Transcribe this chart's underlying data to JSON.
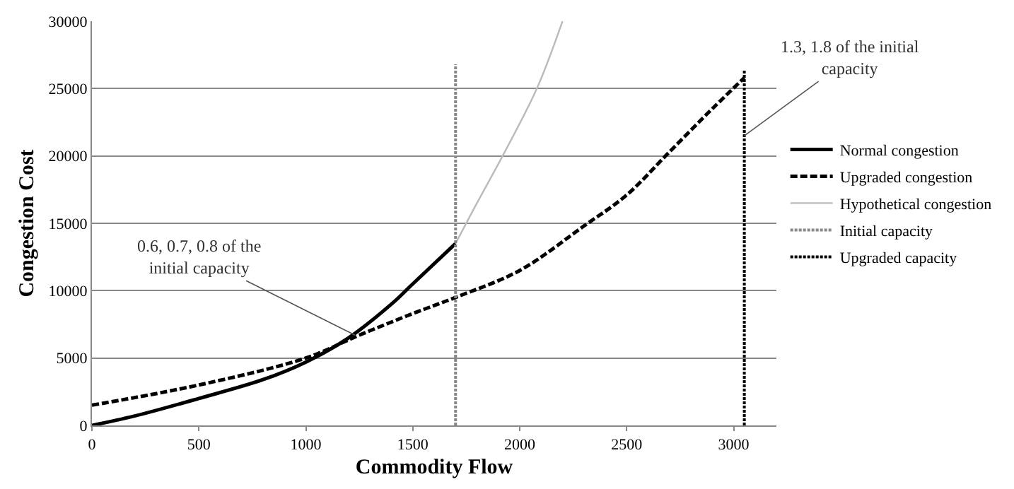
{
  "chart_data": {
    "type": "line",
    "xlabel": "Commodity Flow",
    "ylabel": "Congestion Cost",
    "xlim": [
      0,
      3200
    ],
    "xticks": [
      0,
      500,
      1000,
      1500,
      2000,
      2500,
      3000
    ],
    "ylim": [
      0,
      30000
    ],
    "yticks": [
      0,
      5000,
      10000,
      15000,
      20000,
      25000,
      30000
    ],
    "grid": "y",
    "legend": "right",
    "marker": "none",
    "series": [
      {
        "name": "Normal congestion",
        "color": "#000000",
        "line_style": "solid",
        "x": [
          0,
          200,
          500,
          800,
          1000,
          1200,
          1400,
          1500,
          1700
        ],
        "values": [
          0,
          700,
          2000,
          3400,
          4700,
          6500,
          9000,
          10500,
          13500
        ]
      },
      {
        "name": "Upgraded congestion",
        "color": "#000000",
        "line_style": "dashed",
        "x": [
          0,
          500,
          1000,
          1250,
          1500,
          1700,
          2000,
          2300,
          2500,
          2700,
          2900,
          3050
        ],
        "values": [
          1500,
          3000,
          5000,
          6700,
          8300,
          9500,
          11500,
          14800,
          17100,
          20300,
          23500,
          25800
        ]
      },
      {
        "name": "Hypothetical congestion",
        "color": "#bbbbbb",
        "line_style": "solid",
        "x": [
          1700,
          1800,
          1920,
          2080,
          2200
        ],
        "values": [
          13500,
          16500,
          20000,
          25000,
          30000
        ]
      },
      {
        "name": "Initial capacity",
        "color": "#888888",
        "line_style": "dotted",
        "x": [
          1700,
          1700
        ],
        "values": [
          0,
          26800
        ]
      },
      {
        "name": "Upgraded capacity",
        "color": "#000000",
        "line_style": "dotted",
        "x": [
          3050,
          3050
        ],
        "values": [
          0,
          26400
        ]
      }
    ],
    "annotations": [
      {
        "text": "0.6, 0.7, 0.8 of the\ninitial capacity",
        "x": 1230,
        "y": 6700
      },
      {
        "text": "1.3, 1.8 of the initial\ncapacity",
        "x": 3050,
        "y": 21500
      }
    ]
  }
}
